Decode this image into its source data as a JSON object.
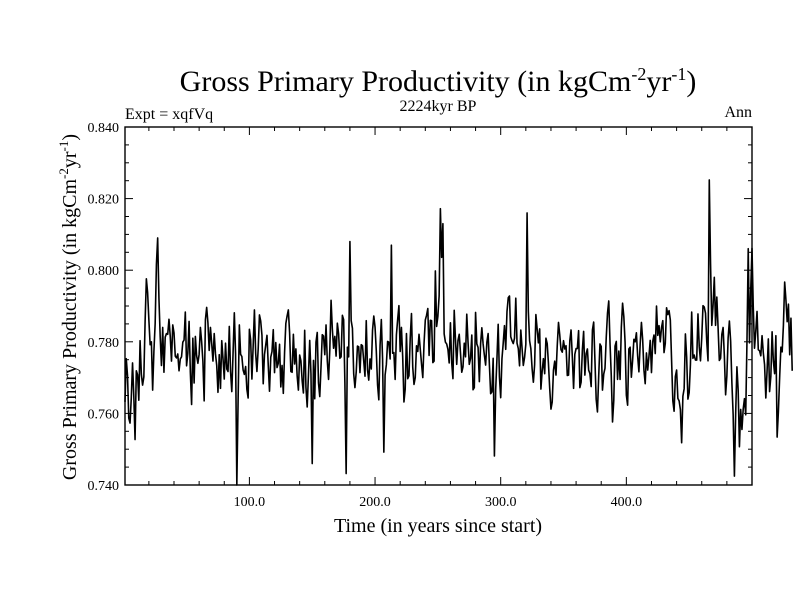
{
  "chart_data": {
    "type": "line",
    "title": {
      "main": "Gross Primary Productivity (in kgCm",
      "sup1": "-2",
      "mid": "yr",
      "sup2": "-1",
      "end": ")"
    },
    "subtitle": "2224kyr BP",
    "left_label": "Expt = xqfVq",
    "right_label": "Ann",
    "xlabel": "Time (in years since start)",
    "ylabel": {
      "main": "Gross Primary Productivity (in kgCm",
      "sup1": "-2",
      "mid": "yr",
      "sup2": "-1",
      "end": ")"
    },
    "xlim": [
      1,
      500
    ],
    "ylim": [
      0.74,
      0.84
    ],
    "x_ticks": [
      100,
      200,
      300,
      400
    ],
    "x_tick_labels": [
      "100.0",
      "200.0",
      "300.0",
      "400.0"
    ],
    "y_ticks": [
      0.74,
      0.76,
      0.78,
      0.8,
      0.82,
      0.84
    ],
    "y_tick_labels": [
      "0.740",
      "0.760",
      "0.780",
      "0.800",
      "0.820",
      "0.840"
    ],
    "series": [
      {
        "name": "Ann",
        "color": "#000000",
        "x_start": 1,
        "x_step": 1,
        "values": [
          0.7632,
          0.7753,
          0.7706,
          0.7587,
          0.7573,
          0.7643,
          0.7741,
          0.7648,
          0.7527,
          0.7719,
          0.7708,
          0.7637,
          0.7803,
          0.771,
          0.7679,
          0.7702,
          0.7856,
          0.7976,
          0.7937,
          0.7861,
          0.7792,
          0.78,
          0.7665,
          0.7773,
          0.7851,
          0.8016,
          0.809,
          0.7922,
          0.7815,
          0.7734,
          0.784,
          0.7715,
          0.7813,
          0.7823,
          0.7821,
          0.7863,
          0.7816,
          0.7746,
          0.7847,
          0.7825,
          0.776,
          0.7755,
          0.7766,
          0.7719,
          0.7752,
          0.7758,
          0.7799,
          0.7805,
          0.7883,
          0.7733,
          0.7768,
          0.7857,
          0.7715,
          0.7625,
          0.781,
          0.7685,
          0.7815,
          0.7761,
          0.774,
          0.7765,
          0.784,
          0.78,
          0.7745,
          0.7635,
          0.7862,
          0.7896,
          0.7853,
          0.7776,
          0.784,
          0.7795,
          0.7746,
          0.7823,
          0.7766,
          0.7734,
          0.7659,
          0.7764,
          0.767,
          0.7803,
          0.7753,
          0.7696,
          0.7796,
          0.7724,
          0.7717,
          0.7843,
          0.7717,
          0.7661,
          0.7768,
          0.7881,
          0.7766,
          0.74,
          0.7634,
          0.7847,
          0.7765,
          0.7759,
          0.7721,
          0.7709,
          0.7731,
          0.7667,
          0.7643,
          0.7835,
          0.7805,
          0.7696,
          0.7788,
          0.7889,
          0.7767,
          0.7717,
          0.778,
          0.7875,
          0.7858,
          0.7818,
          0.7683,
          0.7764,
          0.7791,
          0.7818,
          0.7735,
          0.7662,
          0.7757,
          0.7773,
          0.7834,
          0.7714,
          0.7798,
          0.7728,
          0.774,
          0.7793,
          0.7674,
          0.7734,
          0.7656,
          0.7771,
          0.7851,
          0.7872,
          0.7889,
          0.7825,
          0.7717,
          0.7715,
          0.7821,
          0.7738,
          0.778,
          0.7705,
          0.7665,
          0.7763,
          0.7747,
          0.7691,
          0.7657,
          0.7832,
          0.7673,
          0.7618,
          0.7707,
          0.7804,
          0.7711,
          0.746,
          0.7748,
          0.7641,
          0.7799,
          0.7826,
          0.7685,
          0.7647,
          0.773,
          0.782,
          0.7816,
          0.7764,
          0.7847,
          0.7747,
          0.7695,
          0.7778,
          0.7916,
          0.7836,
          0.7782,
          0.7815,
          0.776,
          0.7852,
          0.7822,
          0.7754,
          0.7758,
          0.7874,
          0.7862,
          0.7685,
          0.7432,
          0.7785,
          0.7758,
          0.808,
          0.7859,
          0.7838,
          0.7711,
          0.7672,
          0.7715,
          0.7788,
          0.7786,
          0.7714,
          0.7792,
          0.7789,
          0.7746,
          0.7704,
          0.7859,
          0.7722,
          0.7693,
          0.7752,
          0.7724,
          0.7832,
          0.7872,
          0.7841,
          0.7774,
          0.768,
          0.7638,
          0.779,
          0.7862,
          0.7751,
          0.7492,
          0.7707,
          0.7736,
          0.7801,
          0.7799,
          0.7752,
          0.807,
          0.7768,
          0.777,
          0.7695,
          0.782,
          0.7862,
          0.7901,
          0.7773,
          0.784,
          0.7758,
          0.7632,
          0.7668,
          0.7823,
          0.7697,
          0.7705,
          0.7811,
          0.7879,
          0.7729,
          0.7681,
          0.77,
          0.7789,
          0.7773,
          0.7821,
          0.7779,
          0.7738,
          0.77,
          0.7796,
          0.7861,
          0.7874,
          0.7893,
          0.7762,
          0.786,
          0.7859,
          0.7742,
          0.7746,
          0.7998,
          0.7843,
          0.7871,
          0.7928,
          0.8172,
          0.8036,
          0.813,
          0.7822,
          0.7799,
          0.7794,
          0.7779,
          0.7741,
          0.7853,
          0.7742,
          0.7697,
          0.7888,
          0.7807,
          0.7737,
          0.7804,
          0.7821,
          0.7769,
          0.7715,
          0.773,
          0.7796,
          0.7758,
          0.7877,
          0.7799,
          0.7737,
          0.7753,
          0.7819,
          0.7666,
          0.7672,
          0.7882,
          0.7794,
          0.7784,
          0.7689,
          0.7794,
          0.7839,
          0.7794,
          0.7763,
          0.7735,
          0.7799,
          0.7823,
          0.7736,
          0.7655,
          0.766,
          0.7754,
          0.7481,
          0.7665,
          0.7752,
          0.7849,
          0.7702,
          0.7644,
          0.7752,
          0.7796,
          0.7845,
          0.7779,
          0.7884,
          0.7923,
          0.7928,
          0.7814,
          0.7803,
          0.7795,
          0.781,
          0.7922,
          0.7796,
          0.7781,
          0.7733,
          0.7833,
          0.7782,
          0.7734,
          0.7756,
          0.7793,
          0.816,
          0.7885,
          0.7803,
          0.7781,
          0.7725,
          0.7687,
          0.7736,
          0.7876,
          0.7836,
          0.7797,
          0.7836,
          0.7668,
          0.7718,
          0.7753,
          0.7711,
          0.781,
          0.7795,
          0.774,
          0.767,
          0.7612,
          0.7632,
          0.7721,
          0.7746,
          0.7707,
          0.7789,
          0.7854,
          0.7819,
          0.7778,
          0.7771,
          0.7803,
          0.778,
          0.7789,
          0.7706,
          0.7707,
          0.7803,
          0.7833,
          0.7758,
          0.767,
          0.7765,
          0.7781,
          0.7781,
          0.7831,
          0.7672,
          0.7687,
          0.7777,
          0.7829,
          0.7707,
          0.7767,
          0.778,
          0.7721,
          0.7711,
          0.7675,
          0.7833,
          0.7855,
          0.7748,
          0.7639,
          0.7604,
          0.7705,
          0.7794,
          0.7787,
          0.7665,
          0.771,
          0.7726,
          0.7812,
          0.788,
          0.7914,
          0.7797,
          0.7705,
          0.7576,
          0.7636,
          0.7788,
          0.7801,
          0.7695,
          0.7774,
          0.7695,
          0.784,
          0.7908,
          0.787,
          0.7798,
          0.7651,
          0.7623,
          0.778,
          0.7785,
          0.7701,
          0.7749,
          0.7807,
          0.78,
          0.7825,
          0.776,
          0.7716,
          0.7794,
          0.7854,
          0.7805,
          0.7721,
          0.7683,
          0.7769,
          0.7721,
          0.776,
          0.7804,
          0.7714,
          0.7801,
          0.7819,
          0.7767,
          0.79,
          0.7818,
          0.7845,
          0.78,
          0.784,
          0.7859,
          0.777,
          0.7796,
          0.7895,
          0.7876,
          0.7887,
          0.7861,
          0.7749,
          0.7635,
          0.7606,
          0.7703,
          0.7721,
          0.7642,
          0.7635,
          0.7611,
          0.7518,
          0.7648,
          0.7669,
          0.7822,
          0.7757,
          0.764,
          0.7658,
          0.7737,
          0.7883,
          0.7754,
          0.7763,
          0.7749,
          0.7749,
          0.7878,
          0.7787,
          0.7747,
          0.7811,
          0.7901,
          0.7897,
          0.788,
          0.78,
          0.7747,
          0.8252,
          0.8019,
          0.7846,
          0.7902,
          0.798,
          0.7846,
          0.7925,
          0.784,
          0.7748,
          0.7754,
          0.7821,
          0.784,
          0.776,
          0.7652,
          0.7705,
          0.7811,
          0.7858,
          0.7802,
          0.7684,
          0.7596,
          0.7425,
          0.76,
          0.773,
          0.7664,
          0.7507,
          0.7611,
          0.7555,
          0.7612,
          0.7641,
          0.7596,
          0.7802,
          0.806,
          0.7797,
          0.7945,
          0.8061,
          0.7897,
          0.7782,
          0.7829,
          0.7885,
          0.7778,
          0.7775,
          0.7761,
          0.7817,
          0.7769,
          0.7736,
          0.7643,
          0.7719,
          0.7808,
          0.7661,
          0.7704,
          0.7828,
          0.7746,
          0.7711,
          0.7817,
          0.7534,
          0.7605,
          0.77,
          0.7785,
          0.7772,
          0.7846,
          0.7967,
          0.7917,
          0.7856,
          0.7905,
          0.7764,
          0.7866,
          0.7719
        ]
      }
    ]
  }
}
